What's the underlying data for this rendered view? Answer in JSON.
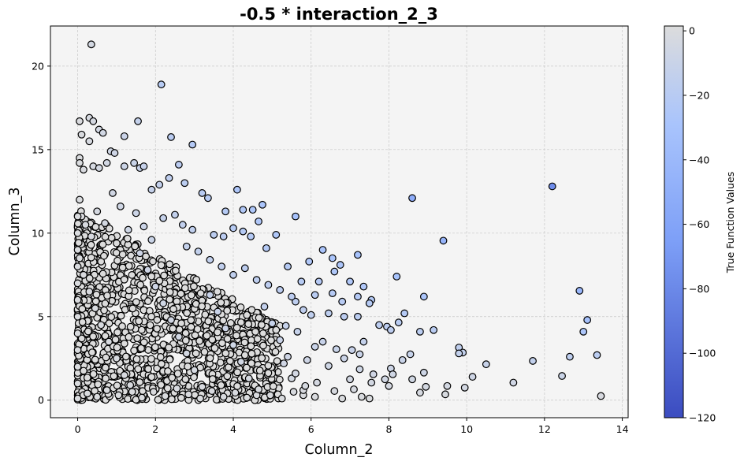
{
  "chart_data": {
    "type": "scatter",
    "title": "-0.5 * interaction_2_3",
    "xlabel": "Column_2",
    "ylabel": "Column_3",
    "xlim": [
      -0.7,
      14.15
    ],
    "ylim": [
      -1.05,
      22.4
    ],
    "x_ticks": [
      0,
      2,
      4,
      6,
      8,
      10,
      12,
      14
    ],
    "y_ticks": [
      0,
      5,
      10,
      15,
      20
    ],
    "grid": true,
    "colorbar": {
      "label": "True Function Values",
      "range": [
        -120,
        1.5
      ],
      "ticks": [
        0,
        -20,
        -40,
        -60,
        -80,
        -100,
        -120
      ],
      "colors": [
        "#dcdcdc",
        "#a9c4fc",
        "#3b4cc0"
      ]
    },
    "colors": {
      "plot_background": "#f4f4f4",
      "point_edge": "#000000"
    },
    "dense_cluster_note_omitted": true,
    "points": [
      [
        0.35,
        21.3
      ],
      [
        2.15,
        18.9
      ],
      [
        0.3,
        16.9
      ],
      [
        0.4,
        16.7
      ],
      [
        1.55,
        16.7
      ],
      [
        0.05,
        16.7
      ],
      [
        0.55,
        16.2
      ],
      [
        0.65,
        16.0
      ],
      [
        0.1,
        15.9
      ],
      [
        0.3,
        15.5
      ],
      [
        1.2,
        15.8
      ],
      [
        2.4,
        15.75
      ],
      [
        2.95,
        15.3
      ],
      [
        0.85,
        14.9
      ],
      [
        0.95,
        14.8
      ],
      [
        1.45,
        14.2
      ],
      [
        0.05,
        14.5
      ],
      [
        0.05,
        14.2
      ],
      [
        0.4,
        14.0
      ],
      [
        0.55,
        13.9
      ],
      [
        1.2,
        14.0
      ],
      [
        1.6,
        13.9
      ],
      [
        0.15,
        13.8
      ],
      [
        0.75,
        14.2
      ],
      [
        1.7,
        14.0
      ],
      [
        2.6,
        14.1
      ],
      [
        2.35,
        13.3
      ],
      [
        2.1,
        12.9
      ],
      [
        1.9,
        12.6
      ],
      [
        2.75,
        13.0
      ],
      [
        3.2,
        12.4
      ],
      [
        3.35,
        12.1
      ],
      [
        4.1,
        12.6
      ],
      [
        3.8,
        11.3
      ],
      [
        4.25,
        11.4
      ],
      [
        4.5,
        11.4
      ],
      [
        4.75,
        11.7
      ],
      [
        4.65,
        10.7
      ],
      [
        5.6,
        11.0
      ],
      [
        4.45,
        9.8
      ],
      [
        5.1,
        9.9
      ],
      [
        3.5,
        9.9
      ],
      [
        3.75,
        9.8
      ],
      [
        2.95,
        10.2
      ],
      [
        2.7,
        10.5
      ],
      [
        4.0,
        10.3
      ],
      [
        4.25,
        10.1
      ],
      [
        4.85,
        9.1
      ],
      [
        6.3,
        9.0
      ],
      [
        5.95,
        8.3
      ],
      [
        6.75,
        8.1
      ],
      [
        7.2,
        8.7
      ],
      [
        6.55,
        8.5
      ],
      [
        5.4,
        8.0
      ],
      [
        5.75,
        7.1
      ],
      [
        6.2,
        7.1
      ],
      [
        6.6,
        7.7
      ],
      [
        7.0,
        7.1
      ],
      [
        7.35,
        6.8
      ],
      [
        7.55,
        6.0
      ],
      [
        7.2,
        6.2
      ],
      [
        6.55,
        6.4
      ],
      [
        6.8,
        5.9
      ],
      [
        6.1,
        6.3
      ],
      [
        5.6,
        5.9
      ],
      [
        5.8,
        5.4
      ],
      [
        6.0,
        5.1
      ],
      [
        6.45,
        5.2
      ],
      [
        6.85,
        5.0
      ],
      [
        7.2,
        5.0
      ],
      [
        7.5,
        5.8
      ],
      [
        7.75,
        4.5
      ],
      [
        7.95,
        4.4
      ],
      [
        8.25,
        4.65
      ],
      [
        8.05,
        4.2
      ],
      [
        8.4,
        5.2
      ],
      [
        8.2,
        7.4
      ],
      [
        8.6,
        12.1
      ],
      [
        9.4,
        9.55
      ],
      [
        8.9,
        6.2
      ],
      [
        8.8,
        4.1
      ],
      [
        9.15,
        4.2
      ],
      [
        9.8,
        3.15
      ],
      [
        9.9,
        2.85
      ],
      [
        9.8,
        2.8
      ],
      [
        10.5,
        2.15
      ],
      [
        11.7,
        2.35
      ],
      [
        12.45,
        1.45
      ],
      [
        12.65,
        2.6
      ],
      [
        13.35,
        2.7
      ],
      [
        13.45,
        0.25
      ],
      [
        11.2,
        1.05
      ],
      [
        10.15,
        1.4
      ],
      [
        9.95,
        0.75
      ],
      [
        9.5,
        0.85
      ],
      [
        9.45,
        0.35
      ],
      [
        8.95,
        0.8
      ],
      [
        8.8,
        0.45
      ],
      [
        8.9,
        1.65
      ],
      [
        8.6,
        1.25
      ],
      [
        8.55,
        2.75
      ],
      [
        8.35,
        2.4
      ],
      [
        8.05,
        1.9
      ],
      [
        8.1,
        1.55
      ],
      [
        8.0,
        0.85
      ],
      [
        7.6,
        1.55
      ],
      [
        7.9,
        1.25
      ],
      [
        7.5,
        0.1
      ],
      [
        7.3,
        0.2
      ],
      [
        7.55,
        1.05
      ],
      [
        7.0,
        1.25
      ],
      [
        7.25,
        1.85
      ],
      [
        6.85,
        2.5
      ],
      [
        7.05,
        3.0
      ],
      [
        7.35,
        3.5
      ],
      [
        7.25,
        2.75
      ],
      [
        6.65,
        3.05
      ],
      [
        6.3,
        3.5
      ],
      [
        6.1,
        3.2
      ],
      [
        5.65,
        4.1
      ],
      [
        5.35,
        4.45
      ],
      [
        5.9,
        2.4
      ],
      [
        6.45,
        2.05
      ],
      [
        6.15,
        1.05
      ],
      [
        6.6,
        0.55
      ],
      [
        7.1,
        0.65
      ],
      [
        6.8,
        0.1
      ],
      [
        5.8,
        0.3
      ],
      [
        5.5,
        1.3
      ],
      [
        5.3,
        2.2
      ],
      [
        12.2,
        12.8
      ],
      [
        12.9,
        6.55
      ],
      [
        13.1,
        4.8
      ],
      [
        13.0,
        4.1
      ],
      [
        0.05,
        12.0
      ],
      [
        0.1,
        11.0
      ],
      [
        0.2,
        10.5
      ],
      [
        0.35,
        9.8
      ],
      [
        0.5,
        11.3
      ],
      [
        0.7,
        10.6
      ],
      [
        0.9,
        12.4
      ],
      [
        1.1,
        11.6
      ],
      [
        1.3,
        10.2
      ],
      [
        1.5,
        11.2
      ],
      [
        1.7,
        10.4
      ],
      [
        1.9,
        9.6
      ],
      [
        2.2,
        10.9
      ],
      [
        2.5,
        11.1
      ],
      [
        2.8,
        9.2
      ],
      [
        3.1,
        8.9
      ],
      [
        3.4,
        8.4
      ],
      [
        3.7,
        8.0
      ],
      [
        4.0,
        7.5
      ],
      [
        4.3,
        7.9
      ],
      [
        4.6,
        7.2
      ],
      [
        4.9,
        6.9
      ],
      [
        5.2,
        6.6
      ],
      [
        5.5,
        6.2
      ],
      [
        0.05,
        8.5
      ],
      [
        0.15,
        7.5
      ],
      [
        0.3,
        6.5
      ],
      [
        0.45,
        5.5
      ],
      [
        0.6,
        4.5
      ],
      [
        0.8,
        3.5
      ],
      [
        1.0,
        2.5
      ],
      [
        1.2,
        1.5
      ],
      [
        1.4,
        0.5
      ],
      [
        1.6,
        8.8
      ],
      [
        1.8,
        7.8
      ],
      [
        2.0,
        6.8
      ],
      [
        2.2,
        5.8
      ],
      [
        2.4,
        4.8
      ],
      [
        2.6,
        3.8
      ],
      [
        2.8,
        2.8
      ],
      [
        3.0,
        1.8
      ],
      [
        3.2,
        0.8
      ],
      [
        3.4,
        6.3
      ],
      [
        3.6,
        5.3
      ],
      [
        3.8,
        4.3
      ],
      [
        4.0,
        3.3
      ],
      [
        4.2,
        2.3
      ],
      [
        4.4,
        1.3
      ],
      [
        4.6,
        0.3
      ],
      [
        4.8,
        5.6
      ],
      [
        5.0,
        4.6
      ],
      [
        5.2,
        3.6
      ],
      [
        5.4,
        2.6
      ],
      [
        5.6,
        1.6
      ],
      [
        5.8,
        0.6
      ],
      [
        0.0,
        0.1
      ],
      [
        0.0,
        1.0
      ],
      [
        0.0,
        2.0
      ],
      [
        0.0,
        3.0
      ],
      [
        0.0,
        4.0
      ],
      [
        0.0,
        5.0
      ],
      [
        0.0,
        6.0
      ],
      [
        0.0,
        7.0
      ],
      [
        0.0,
        8.0
      ],
      [
        0.0,
        9.0
      ],
      [
        0.0,
        10.0
      ],
      [
        0.0,
        11.0
      ],
      [
        0.25,
        0.4
      ],
      [
        0.5,
        0.2
      ],
      [
        0.75,
        0.6
      ],
      [
        1.05,
        0.3
      ],
      [
        1.35,
        0.9
      ],
      [
        1.65,
        0.15
      ],
      [
        1.95,
        0.5
      ],
      [
        2.25,
        0.25
      ],
      [
        2.55,
        0.7
      ],
      [
        2.85,
        0.35
      ],
      [
        3.15,
        0.1
      ],
      [
        3.45,
        0.55
      ],
      [
        3.75,
        0.2
      ],
      [
        4.05,
        0.45
      ],
      [
        4.35,
        0.15
      ],
      [
        4.65,
        0.65
      ],
      [
        4.95,
        0.3
      ],
      [
        5.25,
        0.1
      ],
      [
        5.55,
        0.5
      ],
      [
        5.85,
        0.85
      ],
      [
        6.1,
        0.2
      ]
    ]
  }
}
